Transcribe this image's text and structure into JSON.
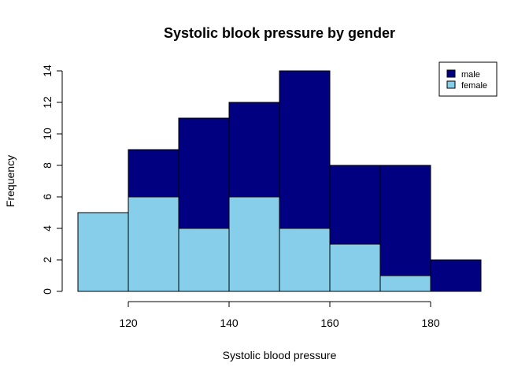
{
  "chart_data": {
    "type": "bar",
    "title": "Systolic blook pressure by gender",
    "xlabel": "Systolic blood pressure",
    "ylabel": "Frequency",
    "bins": [
      [
        110,
        120
      ],
      [
        120,
        130
      ],
      [
        130,
        140
      ],
      [
        140,
        150
      ],
      [
        150,
        160
      ],
      [
        160,
        170
      ],
      [
        170,
        180
      ],
      [
        180,
        190
      ]
    ],
    "stacked": false,
    "overlay": true,
    "series": [
      {
        "name": "male",
        "color": "#000080",
        "values": [
          0,
          9,
          11,
          12,
          14,
          8,
          8,
          2
        ]
      },
      {
        "name": "female",
        "color": "#87CEEB",
        "values": [
          5,
          6,
          4,
          6,
          4,
          3,
          1,
          0
        ]
      }
    ],
    "xlim": [
      110,
      190
    ],
    "ylim": [
      0,
      14
    ],
    "xticks": [
      120,
      140,
      160,
      180
    ],
    "yticks": [
      0,
      2,
      4,
      6,
      8,
      10,
      12,
      14
    ],
    "grid": false,
    "legend_position": "top-right"
  }
}
